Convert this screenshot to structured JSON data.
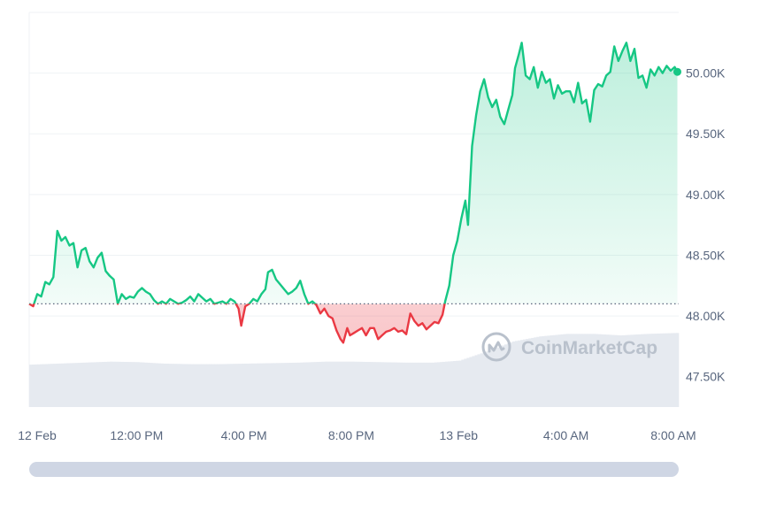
{
  "colors": {
    "up": "#16c784",
    "down": "#ea3943",
    "grid": "#eff2f5",
    "tick_text": "#58667e",
    "baseline": "#58667e",
    "volume": "#e6eaf0",
    "watermark": "#b9c1cc",
    "scrollbar": "#cfd6e4"
  },
  "watermark": {
    "text": "CoinMarketCap",
    "icon": "coinmarketcap-logo-icon"
  },
  "chart_data": {
    "type": "area",
    "title": "",
    "xlabel": "",
    "ylabel": "",
    "x_unit": "hours since 12 Feb 00:00 (local)",
    "xlim": [
      8.0,
      32.2
    ],
    "ylim": [
      47250,
      50500
    ],
    "grid": "horizontal",
    "baseline_value": 48100,
    "y_ticks": [
      {
        "value": 47500,
        "label": "47.50K"
      },
      {
        "value": 48000,
        "label": "48.00K"
      },
      {
        "value": 48500,
        "label": "48.50K"
      },
      {
        "value": 49000,
        "label": "49.00K"
      },
      {
        "value": 49500,
        "label": "49.50K"
      },
      {
        "value": 50000,
        "label": "50.00K"
      }
    ],
    "x_ticks": [
      {
        "value": 8,
        "label": "12 Feb"
      },
      {
        "value": 12,
        "label": "12:00 PM"
      },
      {
        "value": 16,
        "label": "4:00 PM"
      },
      {
        "value": 20,
        "label": "8:00 PM"
      },
      {
        "value": 24,
        "label": "13 Feb"
      },
      {
        "value": 28,
        "label": "4:00 AM"
      },
      {
        "value": 32,
        "label": "8:00 AM"
      }
    ],
    "series": [
      {
        "name": "",
        "points": [
          [
            8.0,
            48100
          ],
          [
            8.15,
            48080
          ],
          [
            8.3,
            48180
          ],
          [
            8.45,
            48160
          ],
          [
            8.6,
            48280
          ],
          [
            8.75,
            48260
          ],
          [
            8.9,
            48320
          ],
          [
            9.05,
            48700
          ],
          [
            9.2,
            48620
          ],
          [
            9.35,
            48650
          ],
          [
            9.5,
            48580
          ],
          [
            9.65,
            48600
          ],
          [
            9.8,
            48400
          ],
          [
            9.95,
            48540
          ],
          [
            10.1,
            48560
          ],
          [
            10.25,
            48450
          ],
          [
            10.4,
            48400
          ],
          [
            10.55,
            48480
          ],
          [
            10.7,
            48520
          ],
          [
            10.85,
            48370
          ],
          [
            11.0,
            48330
          ],
          [
            11.15,
            48300
          ],
          [
            11.3,
            48100
          ],
          [
            11.45,
            48180
          ],
          [
            11.6,
            48140
          ],
          [
            11.75,
            48160
          ],
          [
            11.9,
            48150
          ],
          [
            12.05,
            48200
          ],
          [
            12.2,
            48230
          ],
          [
            12.35,
            48200
          ],
          [
            12.5,
            48180
          ],
          [
            12.65,
            48130
          ],
          [
            12.8,
            48100
          ],
          [
            12.95,
            48120
          ],
          [
            13.1,
            48100
          ],
          [
            13.25,
            48140
          ],
          [
            13.4,
            48120
          ],
          [
            13.55,
            48100
          ],
          [
            13.7,
            48110
          ],
          [
            13.85,
            48130
          ],
          [
            14.0,
            48160
          ],
          [
            14.15,
            48120
          ],
          [
            14.3,
            48180
          ],
          [
            14.45,
            48150
          ],
          [
            14.6,
            48120
          ],
          [
            14.75,
            48140
          ],
          [
            14.9,
            48100
          ],
          [
            15.05,
            48110
          ],
          [
            15.2,
            48120
          ],
          [
            15.35,
            48100
          ],
          [
            15.5,
            48140
          ],
          [
            15.65,
            48120
          ],
          [
            15.8,
            48060
          ],
          [
            15.9,
            47920
          ],
          [
            16.05,
            48080
          ],
          [
            16.2,
            48100
          ],
          [
            16.35,
            48140
          ],
          [
            16.5,
            48120
          ],
          [
            16.65,
            48180
          ],
          [
            16.8,
            48220
          ],
          [
            16.9,
            48360
          ],
          [
            17.05,
            48380
          ],
          [
            17.2,
            48300
          ],
          [
            17.35,
            48260
          ],
          [
            17.5,
            48220
          ],
          [
            17.65,
            48180
          ],
          [
            17.8,
            48200
          ],
          [
            17.95,
            48230
          ],
          [
            18.1,
            48290
          ],
          [
            18.25,
            48180
          ],
          [
            18.4,
            48100
          ],
          [
            18.55,
            48120
          ],
          [
            18.7,
            48090
          ],
          [
            18.85,
            48020
          ],
          [
            19.0,
            48060
          ],
          [
            19.15,
            48000
          ],
          [
            19.3,
            47980
          ],
          [
            19.45,
            47880
          ],
          [
            19.6,
            47810
          ],
          [
            19.7,
            47780
          ],
          [
            19.85,
            47900
          ],
          [
            19.95,
            47840
          ],
          [
            20.1,
            47860
          ],
          [
            20.25,
            47880
          ],
          [
            20.4,
            47900
          ],
          [
            20.55,
            47840
          ],
          [
            20.7,
            47900
          ],
          [
            20.85,
            47900
          ],
          [
            21.0,
            47810
          ],
          [
            21.15,
            47840
          ],
          [
            21.3,
            47870
          ],
          [
            21.45,
            47880
          ],
          [
            21.6,
            47900
          ],
          [
            21.75,
            47870
          ],
          [
            21.9,
            47880
          ],
          [
            22.05,
            47850
          ],
          [
            22.2,
            48020
          ],
          [
            22.35,
            47960
          ],
          [
            22.5,
            47920
          ],
          [
            22.65,
            47940
          ],
          [
            22.8,
            47890
          ],
          [
            22.95,
            47920
          ],
          [
            23.1,
            47950
          ],
          [
            23.25,
            47940
          ],
          [
            23.4,
            48010
          ],
          [
            23.5,
            48120
          ],
          [
            23.65,
            48250
          ],
          [
            23.8,
            48500
          ],
          [
            23.95,
            48620
          ],
          [
            24.1,
            48800
          ],
          [
            24.25,
            48950
          ],
          [
            24.35,
            48750
          ],
          [
            24.5,
            49400
          ],
          [
            24.65,
            49650
          ],
          [
            24.8,
            49850
          ],
          [
            24.95,
            49950
          ],
          [
            25.1,
            49800
          ],
          [
            25.25,
            49720
          ],
          [
            25.4,
            49780
          ],
          [
            25.55,
            49640
          ],
          [
            25.7,
            49580
          ],
          [
            25.85,
            49700
          ],
          [
            26.0,
            49820
          ],
          [
            26.1,
            50040
          ],
          [
            26.25,
            50160
          ],
          [
            26.35,
            50250
          ],
          [
            26.5,
            49980
          ],
          [
            26.65,
            49950
          ],
          [
            26.8,
            50050
          ],
          [
            26.95,
            49880
          ],
          [
            27.1,
            50010
          ],
          [
            27.25,
            49920
          ],
          [
            27.4,
            49950
          ],
          [
            27.55,
            49790
          ],
          [
            27.7,
            49900
          ],
          [
            27.85,
            49830
          ],
          [
            28.0,
            49850
          ],
          [
            28.15,
            49850
          ],
          [
            28.3,
            49760
          ],
          [
            28.45,
            49920
          ],
          [
            28.6,
            49750
          ],
          [
            28.75,
            49780
          ],
          [
            28.9,
            49600
          ],
          [
            29.05,
            49860
          ],
          [
            29.2,
            49910
          ],
          [
            29.35,
            49890
          ],
          [
            29.5,
            49980
          ],
          [
            29.65,
            50010
          ],
          [
            29.8,
            50220
          ],
          [
            29.95,
            50100
          ],
          [
            30.1,
            50180
          ],
          [
            30.25,
            50250
          ],
          [
            30.4,
            50100
          ],
          [
            30.55,
            50200
          ],
          [
            30.7,
            49960
          ],
          [
            30.85,
            49980
          ],
          [
            31.0,
            49880
          ],
          [
            31.15,
            50030
          ],
          [
            31.3,
            49980
          ],
          [
            31.45,
            50050
          ],
          [
            31.6,
            50000
          ],
          [
            31.75,
            50060
          ],
          [
            31.9,
            50020
          ],
          [
            32.05,
            50050
          ],
          [
            32.15,
            50010
          ]
        ]
      }
    ],
    "volume": [
      [
        8.0,
        0.84
      ],
      [
        9.0,
        0.86
      ],
      [
        10.0,
        0.88
      ],
      [
        11.0,
        0.9
      ],
      [
        12.0,
        0.89
      ],
      [
        13.0,
        0.86
      ],
      [
        14.0,
        0.85
      ],
      [
        15.0,
        0.85
      ],
      [
        16.0,
        0.86
      ],
      [
        17.0,
        0.87
      ],
      [
        18.0,
        0.88
      ],
      [
        19.0,
        0.9
      ],
      [
        20.0,
        0.9
      ],
      [
        21.0,
        0.89
      ],
      [
        22.0,
        0.88
      ],
      [
        23.0,
        0.88
      ],
      [
        24.0,
        0.92
      ],
      [
        25.0,
        1.1
      ],
      [
        26.0,
        1.3
      ],
      [
        27.0,
        1.4
      ],
      [
        28.0,
        1.45
      ],
      [
        29.0,
        1.45
      ],
      [
        30.0,
        1.42
      ],
      [
        31.0,
        1.45
      ],
      [
        32.2,
        1.47
      ]
    ]
  }
}
